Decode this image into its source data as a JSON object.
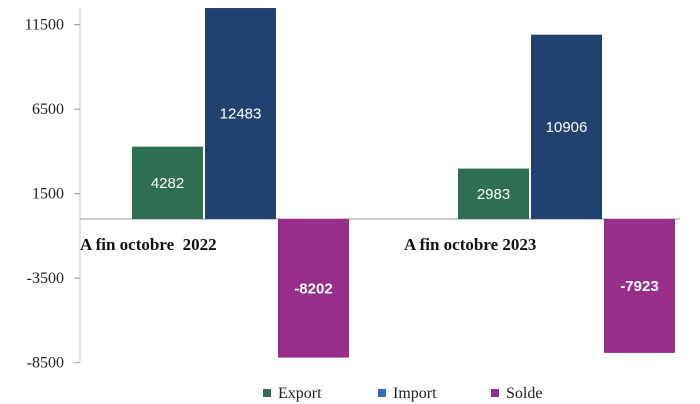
{
  "chart_data": {
    "type": "bar",
    "categories": [
      "A fin octobre  2022",
      "A fin octobre 2023"
    ],
    "series": [
      {
        "name": "Export",
        "values": [
          4282,
          2983
        ],
        "color": "#2e6e52"
      },
      {
        "name": "Import",
        "values": [
          12483,
          10906
        ],
        "color": "#21426f"
      },
      {
        "name": "Solde",
        "values": [
          -8202,
          -7923
        ],
        "color": "#962e8a"
      }
    ],
    "data_labels": [
      [
        "4282",
        "2983"
      ],
      [
        "12483",
        "10906"
      ],
      [
        "-8202",
        "-7923"
      ]
    ],
    "yticks": [
      11500,
      6500,
      1500,
      -3500,
      -8500
    ],
    "ytick_labels": [
      "11500",
      "6500",
      "1500",
      "-3500",
      "-8500"
    ],
    "ylim": [
      -8500,
      12483
    ],
    "legend_position": "bottom",
    "legend_colors": [
      "#2e6e52",
      "#2f6fb8",
      "#962e8a"
    ],
    "grid": false
  }
}
